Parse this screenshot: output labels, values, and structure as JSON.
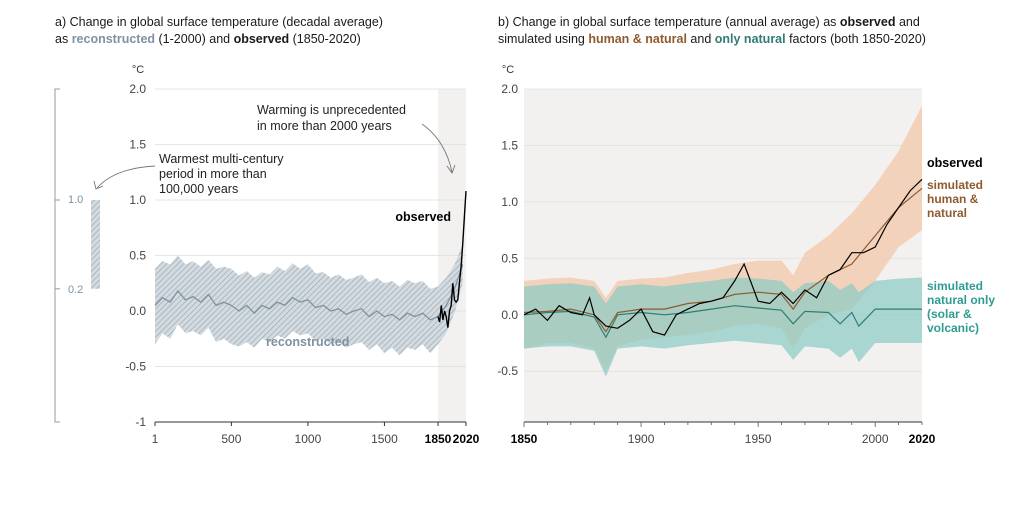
{
  "panel_a": {
    "title": {
      "prefix": "a) Change in global surface temperature (decadal average)",
      "line2_prefix": "as ",
      "reconstructed_word": "reconstructed",
      "line2_mid": " (1-2000) and ",
      "observed_word": "observed",
      "line2_suffix": " (1850-2020)"
    },
    "unit": "°C",
    "annotations": {
      "unprecedented": [
        "Warming is unprecedented",
        "in more than 2000 years"
      ],
      "warmest": [
        "Warmest multi-century",
        "period in more than",
        "100,000 years"
      ],
      "observed_label": "observed",
      "reconstructed_label": "reconstructed"
    },
    "side_bar": {
      "upper_label": "1.0",
      "lower_label": "0.2"
    }
  },
  "panel_b": {
    "title": {
      "line1_prefix": "b) Change in global surface temperature (annual average) as ",
      "observed_word": "observed",
      "line1_suffix": " and",
      "line2_prefix": "simulated using ",
      "human_word": "human & natural",
      "line2_mid": " and ",
      "natural_word": "only natural",
      "line2_suffix": " factors (both 1850-2020)"
    },
    "unit": "°C",
    "labels": {
      "observed": "observed",
      "human": [
        "simulated",
        "human &",
        "natural"
      ],
      "natural": [
        "simulated",
        "natural only",
        "(solar &",
        "volcanic)"
      ]
    }
  },
  "colors": {
    "reconstructed": "#7f92a1",
    "reconstructed_band": "#b9c4cd",
    "observed": "#000000",
    "human": "#8f5a2e",
    "human_band": "#f2cdb0",
    "natural": "#2f7d73",
    "natural_band": "#8ccbc4",
    "panel_bg": "#f2f1ef",
    "grid": "#dddddd"
  },
  "chart_data": [
    {
      "type": "line",
      "title": "Change in global surface temperature (decadal average)",
      "ylabel": "°C",
      "ylim": [
        -1,
        2.0
      ],
      "yticks": [
        "2.0",
        "1.5",
        "1.0",
        "0.5",
        "0.0",
        "-0.5",
        "-1"
      ],
      "xticks": [
        "1",
        "500",
        "1000",
        "1500",
        "1850",
        "2020"
      ],
      "grid": true,
      "series": [
        {
          "name": "reconstructed",
          "x": [
            1,
            50,
            100,
            150,
            200,
            250,
            300,
            350,
            400,
            450,
            500,
            550,
            600,
            650,
            700,
            750,
            800,
            850,
            900,
            950,
            1000,
            1050,
            1100,
            1150,
            1200,
            1250,
            1300,
            1350,
            1400,
            1450,
            1500,
            1550,
            1600,
            1650,
            1700,
            1750,
            1800,
            1850,
            1900,
            1950,
            2000
          ],
          "y": [
            0.05,
            0.12,
            0.08,
            0.18,
            0.1,
            0.13,
            0.08,
            0.15,
            0.05,
            0.08,
            0.05,
            0.0,
            0.05,
            -0.02,
            0.05,
            0.02,
            0.08,
            0.05,
            0.12,
            0.08,
            0.1,
            0.03,
            0.05,
            0.0,
            0.02,
            -0.03,
            0.0,
            0.02,
            -0.05,
            0.0,
            -0.05,
            -0.03,
            -0.08,
            -0.02,
            -0.05,
            -0.02,
            -0.08,
            -0.05,
            0.05,
            0.2,
            0.42
          ],
          "lower": [
            -0.3,
            -0.2,
            -0.25,
            -0.12,
            -0.2,
            -0.18,
            -0.22,
            -0.15,
            -0.28,
            -0.25,
            -0.3,
            -0.32,
            -0.28,
            -0.33,
            -0.25,
            -0.28,
            -0.22,
            -0.25,
            -0.18,
            -0.22,
            -0.2,
            -0.27,
            -0.25,
            -0.3,
            -0.28,
            -0.33,
            -0.3,
            -0.28,
            -0.35,
            -0.3,
            -0.38,
            -0.33,
            -0.4,
            -0.33,
            -0.35,
            -0.3,
            -0.38,
            -0.3,
            -0.2,
            -0.02,
            0.25
          ],
          "upper": [
            0.38,
            0.45,
            0.42,
            0.5,
            0.42,
            0.45,
            0.4,
            0.46,
            0.38,
            0.4,
            0.38,
            0.32,
            0.36,
            0.3,
            0.35,
            0.33,
            0.4,
            0.36,
            0.43,
            0.38,
            0.42,
            0.34,
            0.35,
            0.3,
            0.33,
            0.28,
            0.3,
            0.33,
            0.26,
            0.3,
            0.25,
            0.27,
            0.22,
            0.28,
            0.25,
            0.27,
            0.2,
            0.22,
            0.3,
            0.42,
            0.6
          ]
        },
        {
          "name": "observed",
          "x": [
            1850,
            1860,
            1870,
            1880,
            1890,
            1900,
            1910,
            1920,
            1930,
            1940,
            1950,
            1960,
            1970,
            1980,
            1990,
            2000,
            2010,
            2020
          ],
          "y": [
            -0.05,
            -0.1,
            0.05,
            -0.08,
            0.0,
            -0.05,
            -0.15,
            0.0,
            0.05,
            0.25,
            0.1,
            0.08,
            0.1,
            0.25,
            0.4,
            0.6,
            0.85,
            1.08
          ]
        }
      ],
      "annotations": [
        "Warming is unprecedented in more than 2000 years",
        "Warmest multi-century period in more than 100,000 years",
        "observed",
        "reconstructed"
      ]
    },
    {
      "type": "line",
      "title": "Change in global surface temperature (annual average) as observed and simulated using human & natural and only natural factors (both 1850-2020)",
      "ylabel": "°C",
      "ylim": [
        -0.95,
        2.0
      ],
      "yticks": [
        "2.0",
        "1.5",
        "1.0",
        "0.5",
        "0.0",
        "-0.5"
      ],
      "xticks": [
        "1850",
        "1900",
        "1950",
        "2000",
        "2020"
      ],
      "grid": true,
      "series": [
        {
          "name": "observed",
          "x": [
            1850,
            1855,
            1860,
            1865,
            1870,
            1875,
            1878,
            1880,
            1885,
            1890,
            1895,
            1900,
            1905,
            1910,
            1915,
            1920,
            1925,
            1930,
            1935,
            1940,
            1944,
            1950,
            1955,
            1960,
            1965,
            1970,
            1975,
            1980,
            1985,
            1990,
            1995,
            2000,
            2005,
            2010,
            2015,
            2020
          ],
          "y": [
            0.0,
            0.05,
            -0.05,
            0.08,
            0.02,
            0.0,
            0.15,
            0.0,
            -0.1,
            -0.12,
            -0.05,
            0.05,
            -0.15,
            -0.18,
            0.0,
            0.05,
            0.1,
            0.12,
            0.15,
            0.3,
            0.45,
            0.12,
            0.1,
            0.2,
            0.1,
            0.22,
            0.15,
            0.35,
            0.4,
            0.55,
            0.55,
            0.6,
            0.8,
            0.95,
            1.1,
            1.2
          ]
        },
        {
          "name": "simulated human & natural",
          "x": [
            1850,
            1860,
            1870,
            1880,
            1885,
            1890,
            1900,
            1910,
            1920,
            1930,
            1940,
            1950,
            1960,
            1965,
            1970,
            1980,
            1990,
            2000,
            2010,
            2020
          ],
          "y": [
            0.02,
            0.03,
            0.05,
            0.0,
            -0.15,
            0.02,
            0.05,
            0.05,
            0.1,
            0.12,
            0.18,
            0.2,
            0.18,
            0.05,
            0.2,
            0.35,
            0.45,
            0.7,
            0.95,
            1.12
          ],
          "lower": [
            -0.3,
            -0.25,
            -0.25,
            -0.3,
            -0.5,
            -0.28,
            -0.22,
            -0.2,
            -0.18,
            -0.15,
            -0.1,
            -0.08,
            -0.12,
            -0.3,
            -0.12,
            0.0,
            0.05,
            0.3,
            0.6,
            0.75
          ],
          "upper": [
            0.3,
            0.32,
            0.33,
            0.3,
            0.15,
            0.3,
            0.32,
            0.33,
            0.37,
            0.4,
            0.45,
            0.48,
            0.48,
            0.35,
            0.55,
            0.7,
            0.9,
            1.15,
            1.45,
            1.85
          ]
        },
        {
          "name": "simulated natural only (solar & volcanic)",
          "x": [
            1850,
            1860,
            1870,
            1880,
            1885,
            1890,
            1900,
            1910,
            1920,
            1930,
            1940,
            1950,
            1960,
            1965,
            1970,
            1980,
            1985,
            1990,
            1993,
            2000,
            2010,
            2020
          ],
          "y": [
            0.0,
            0.02,
            0.03,
            -0.02,
            -0.2,
            0.0,
            0.02,
            0.0,
            0.02,
            0.05,
            0.08,
            0.06,
            0.04,
            -0.08,
            0.03,
            0.02,
            -0.08,
            0.02,
            -0.1,
            0.05,
            0.05,
            0.05
          ],
          "lower": [
            -0.3,
            -0.28,
            -0.28,
            -0.32,
            -0.55,
            -0.3,
            -0.28,
            -0.3,
            -0.27,
            -0.25,
            -0.23,
            -0.25,
            -0.27,
            -0.4,
            -0.28,
            -0.3,
            -0.38,
            -0.3,
            -0.42,
            -0.25,
            -0.25,
            -0.25
          ],
          "upper": [
            0.25,
            0.27,
            0.28,
            0.25,
            0.1,
            0.25,
            0.27,
            0.25,
            0.28,
            0.3,
            0.33,
            0.32,
            0.3,
            0.2,
            0.28,
            0.3,
            0.22,
            0.28,
            0.2,
            0.3,
            0.32,
            0.33
          ]
        }
      ],
      "annotations": [
        "observed",
        "simulated human & natural",
        "simulated natural only (solar & volcanic)"
      ]
    }
  ]
}
